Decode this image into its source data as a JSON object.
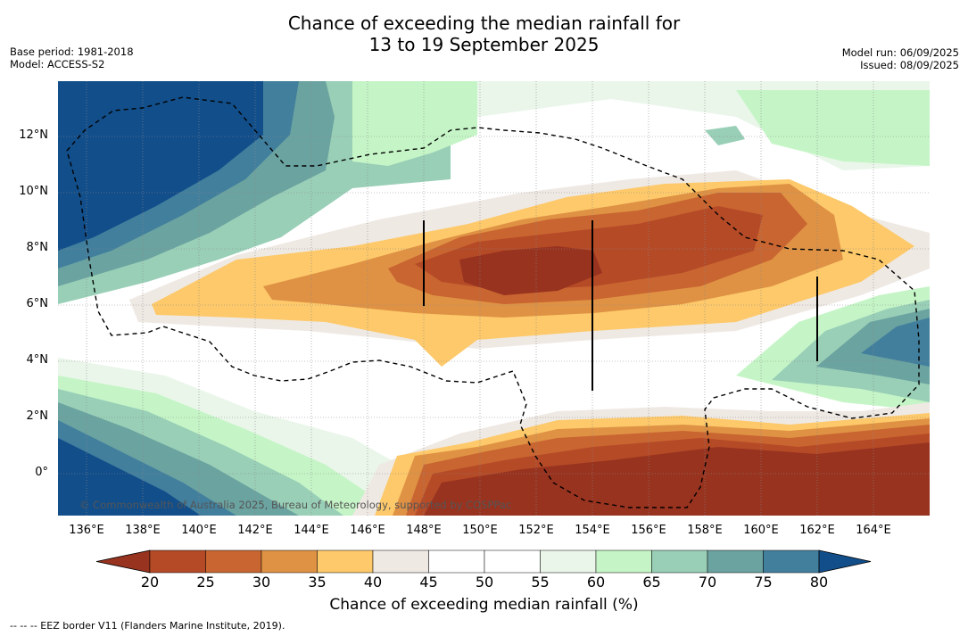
{
  "title_line1": "Chance of exceeding the median rainfall for",
  "title_line2": "13 to 19 September 2025",
  "base_period": "Base period: 1981-2018",
  "model": "Model: ACCESS-S2",
  "model_run": "Model run: 06/09/2025",
  "issued": "Issued: 08/09/2025",
  "copyright": "© Commonwealth of Australia 2025, Bureau of Meteorology, supported by COSPPac",
  "lat_labels": [
    "12°N",
    "10°N",
    "8°N",
    "6°N",
    "4°N",
    "2°N",
    "0°"
  ],
  "lon_labels": [
    "136°E",
    "138°E",
    "140°E",
    "142°E",
    "144°E",
    "146°E",
    "148°E",
    "150°E",
    "152°E",
    "154°E",
    "156°E",
    "158°E",
    "160°E",
    "162°E",
    "164°E"
  ],
  "colorbar": {
    "ticks": [
      "20",
      "25",
      "30",
      "35",
      "40",
      "45",
      "50",
      "55",
      "60",
      "65",
      "70",
      "75",
      "80"
    ],
    "colors": [
      "#98331f",
      "#b54a27",
      "#c96531",
      "#df9244",
      "#fdc96a",
      "#efe9e4",
      "#ffffff",
      "#ffffff",
      "#eaf6ea",
      "#c5f5c6",
      "#99cfb7",
      "#6ba3a0",
      "#427f9d",
      "#124e8a"
    ],
    "label": "Chance of exceeding median rainfall (%)"
  },
  "footnote": "-- -- -- EEZ border V11 (Flanders Marine Institute, 2019)."
}
